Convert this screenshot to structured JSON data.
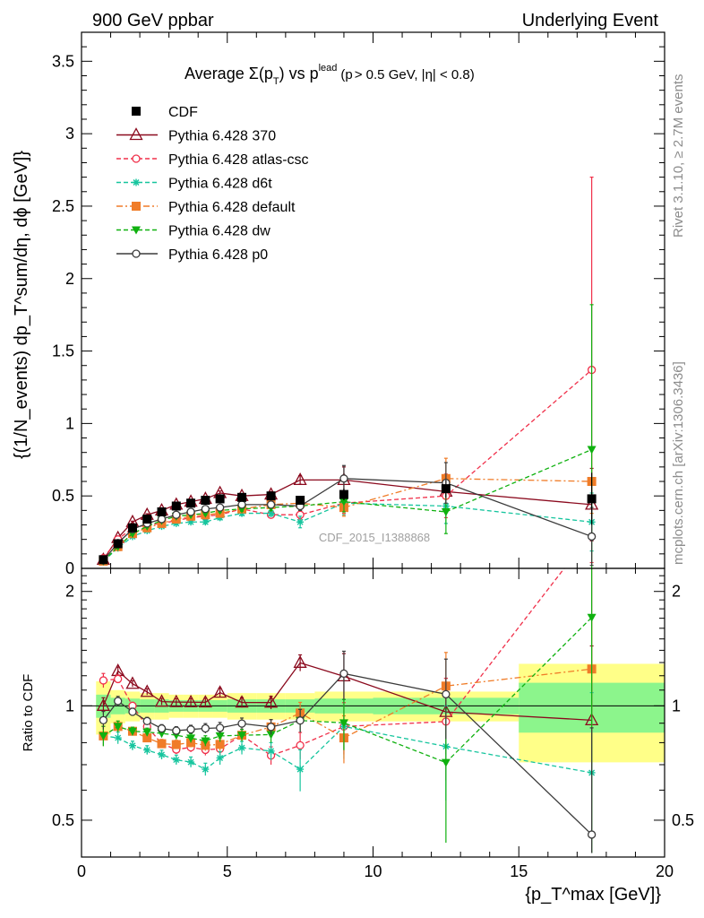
{
  "header": {
    "left": "900 GeV ppbar",
    "right": "Underlying Event"
  },
  "plot_title": {
    "main": "Average Σ(p",
    "sub_t": "T",
    "mid": ") vs p",
    "sup_lead": "lead",
    "tail": "(p",
    "tail2": "> 0.5 GeV, |η| < 0.8)"
  },
  "side_labels": {
    "rivet": "Rivet 3.1.10, ≥ 2.7M events",
    "mcplots": "mcplots.cern.ch [arXiv:1306.3436]"
  },
  "analysis_id": "CDF_2015_I1388868",
  "axes": {
    "ylabel_top": "{(1/N_events) dp_T^sum/dη, dϕ [GeV]}",
    "ylabel_bottom": "Ratio to CDF",
    "xlabel": "{p_T^max [GeV]}",
    "x_ticks": [
      "0",
      "5",
      "10",
      "15",
      "20"
    ],
    "y_ticks_top": [
      "0",
      "0.5",
      "1",
      "1.5",
      "2",
      "2.5",
      "3",
      "3.5"
    ],
    "y_ticks_ratio": [
      "0.5",
      "1",
      "2"
    ]
  },
  "legend": [
    {
      "label": "CDF",
      "color": "#000000",
      "marker": "filled-square",
      "line": "none"
    },
    {
      "label": "Pythia 6.428 370",
      "color": "#8b0a1e",
      "marker": "open-triangle",
      "line": "solid"
    },
    {
      "label": "Pythia 6.428 atlas-csc",
      "color": "#f0304a",
      "marker": "open-circle",
      "line": "dashed"
    },
    {
      "label": "Pythia 6.428 d6t",
      "color": "#16c59e",
      "marker": "star",
      "line": "dashed"
    },
    {
      "label": "Pythia 6.428 default",
      "color": "#f07c28",
      "marker": "filled-square",
      "line": "dashdot"
    },
    {
      "label": "Pythia 6.428 dw",
      "color": "#0fb10f",
      "marker": "filled-triangle-down",
      "line": "dashed"
    },
    {
      "label": "Pythia 6.428 p0",
      "color": "#3b3b3b",
      "marker": "open-circle",
      "line": "solid"
    }
  ],
  "chart_data": {
    "type": "line",
    "title": "Average Σ(pT) vs pT lead (pT > 0.5 GeV, |η| < 0.8)",
    "xlabel": "{pT max [GeV]}",
    "ylabel": "{(1/Nevents) dpT sum/dη, dϕ [GeV]}",
    "xlim": [
      0,
      20
    ],
    "ylim": [
      0,
      3.7
    ],
    "ratio_ylim_log": [
      0.4,
      2.3
    ],
    "x": [
      0.75,
      1.25,
      1.75,
      2.25,
      2.75,
      3.25,
      3.75,
      4.25,
      4.75,
      5.5,
      6.5,
      7.5,
      9.0,
      12.5,
      17.5
    ],
    "bin_edges": [
      0.5,
      1.0,
      1.5,
      2.0,
      2.5,
      3.0,
      3.5,
      4.0,
      4.5,
      5.0,
      6.0,
      7.0,
      8.0,
      10.0,
      15.0,
      20.0
    ],
    "data": {
      "name": "CDF",
      "values": [
        0.06,
        0.17,
        0.28,
        0.34,
        0.39,
        0.43,
        0.45,
        0.47,
        0.48,
        0.49,
        0.5,
        0.47,
        0.51,
        0.55,
        0.48
      ],
      "errors": [
        0.005,
        0.01,
        0.012,
        0.014,
        0.016,
        0.017,
        0.018,
        0.019,
        0.02,
        0.022,
        0.025,
        0.03,
        0.04,
        0.06,
        0.18
      ],
      "ratio_band_yellow": [
        0.16,
        0.1,
        0.09,
        0.08,
        0.08,
        0.07,
        0.07,
        0.07,
        0.07,
        0.08,
        0.08,
        0.08,
        0.09,
        0.09,
        0.29
      ],
      "ratio_band_green": [
        0.07,
        0.05,
        0.045,
        0.04,
        0.04,
        0.035,
        0.035,
        0.035,
        0.035,
        0.04,
        0.04,
        0.04,
        0.045,
        0.05,
        0.15
      ]
    },
    "series": [
      {
        "name": "Pythia 6.428 370",
        "values": [
          0.06,
          0.21,
          0.32,
          0.37,
          0.4,
          0.44,
          0.46,
          0.48,
          0.52,
          0.5,
          0.51,
          0.61,
          0.61,
          0.53,
          0.44
        ],
        "errors": [
          0.003,
          0.005,
          0.006,
          0.007,
          0.008,
          0.009,
          0.01,
          0.012,
          0.014,
          0.015,
          0.02,
          0.03,
          0.09,
          0.12,
          0.25
        ]
      },
      {
        "name": "Pythia 6.428 atlas-csc",
        "values": [
          0.07,
          0.2,
          0.28,
          0.3,
          0.31,
          0.33,
          0.35,
          0.36,
          0.37,
          0.41,
          0.37,
          0.37,
          0.45,
          0.5,
          1.37
        ],
        "errors": [
          0.003,
          0.005,
          0.006,
          0.007,
          0.008,
          0.009,
          0.01,
          0.012,
          0.014,
          0.015,
          0.02,
          0.03,
          0.07,
          0.15,
          1.33
        ]
      },
      {
        "name": "Pythia 6.428 d6t",
        "values": [
          0.05,
          0.14,
          0.22,
          0.26,
          0.29,
          0.31,
          0.32,
          0.32,
          0.35,
          0.38,
          0.38,
          0.32,
          0.45,
          0.43,
          0.32
        ],
        "errors": [
          0.003,
          0.005,
          0.006,
          0.007,
          0.008,
          0.009,
          0.01,
          0.012,
          0.014,
          0.015,
          0.02,
          0.04,
          0.08,
          0.12,
          0.2
        ]
      },
      {
        "name": "Pythia 6.428 default",
        "values": [
          0.05,
          0.15,
          0.24,
          0.28,
          0.31,
          0.34,
          0.36,
          0.37,
          0.38,
          0.41,
          0.44,
          0.45,
          0.42,
          0.62,
          0.6
        ],
        "errors": [
          0.003,
          0.005,
          0.006,
          0.007,
          0.008,
          0.009,
          0.01,
          0.012,
          0.014,
          0.015,
          0.02,
          0.03,
          0.06,
          0.14,
          0.22
        ]
      },
      {
        "name": "Pythia 6.428 dw",
        "values": [
          0.05,
          0.15,
          0.24,
          0.29,
          0.33,
          0.36,
          0.37,
          0.38,
          0.4,
          0.41,
          0.42,
          0.43,
          0.46,
          0.39,
          0.82
        ],
        "errors": [
          0.003,
          0.005,
          0.006,
          0.007,
          0.008,
          0.009,
          0.01,
          0.012,
          0.014,
          0.015,
          0.02,
          0.03,
          0.07,
          0.15,
          1.0
        ]
      },
      {
        "name": "Pythia 6.428 p0",
        "values": [
          0.055,
          0.175,
          0.27,
          0.31,
          0.34,
          0.37,
          0.39,
          0.41,
          0.42,
          0.44,
          0.44,
          0.43,
          0.62,
          0.59,
          0.22
        ],
        "errors": [
          0.003,
          0.005,
          0.006,
          0.007,
          0.008,
          0.009,
          0.01,
          0.012,
          0.014,
          0.015,
          0.02,
          0.03,
          0.09,
          0.14,
          0.2
        ]
      }
    ]
  }
}
